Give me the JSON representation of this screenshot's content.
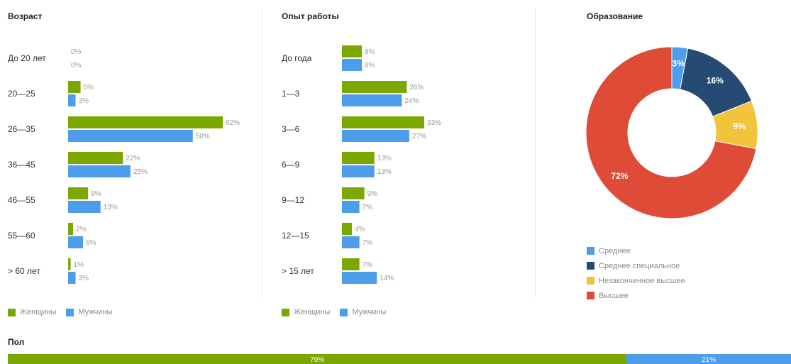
{
  "colors": {
    "women": "#7ba800",
    "men": "#4e9deb",
    "label": "#999999"
  },
  "age": {
    "title": "Возраст",
    "legend": {
      "women": "Женщины",
      "men": "Мужчины"
    }
  },
  "experience": {
    "title": "Опыт работы",
    "legend": {
      "women": "Женщины",
      "men": "Мужчины"
    }
  },
  "education": {
    "title": "Образование",
    "legend": [
      "Среднее",
      "Среднее специальное",
      "Незаконченное высшее",
      "Высшее"
    ]
  },
  "gender": {
    "title": "Пол",
    "women_label": "79%",
    "men_label": "21%"
  },
  "chart_data": [
    {
      "type": "bar",
      "title": "Возраст",
      "orientation": "horizontal",
      "categories": [
        "До 20 лет",
        "20—25",
        "26—35",
        "36—45",
        "46—55",
        "55—60",
        "> 60 лет"
      ],
      "series": [
        {
          "name": "Женщины",
          "color": "#7ba800",
          "values": [
            0,
            5,
            62,
            22,
            8,
            2,
            1
          ]
        },
        {
          "name": "Мужчины",
          "color": "#4e9deb",
          "values": [
            0,
            3,
            50,
            25,
            13,
            6,
            3
          ]
        }
      ],
      "unit": "%",
      "legend": "bottom-left"
    },
    {
      "type": "bar",
      "title": "Опыт работы",
      "orientation": "horizontal",
      "categories": [
        "До года",
        "1—3",
        "3—6",
        "6—9",
        "9—12",
        "12—15",
        "> 15 лет"
      ],
      "series": [
        {
          "name": "Женщины",
          "color": "#7ba800",
          "values": [
            8,
            26,
            33,
            13,
            9,
            4,
            7
          ]
        },
        {
          "name": "Мужчины",
          "color": "#4e9deb",
          "values": [
            8,
            24,
            27,
            13,
            7,
            7,
            14
          ]
        }
      ],
      "unit": "%",
      "legend": "bottom-left"
    },
    {
      "type": "pie",
      "donut": true,
      "title": "Образование",
      "labels": [
        "Среднее",
        "Среднее специальное",
        "Незаконченное высшее",
        "Высшее"
      ],
      "values": [
        3,
        16,
        9,
        72
      ],
      "colors": [
        "#4e9deb",
        "#264b73",
        "#f2c43d",
        "#de4b37"
      ],
      "unit": "%",
      "legend": "bottom"
    },
    {
      "type": "bar",
      "stacked": true,
      "title": "Пол",
      "series": [
        {
          "name": "Женщины",
          "color": "#7ba800",
          "value": 79
        },
        {
          "name": "Мужчины",
          "color": "#4e9deb",
          "value": 21
        }
      ],
      "unit": "%"
    }
  ]
}
